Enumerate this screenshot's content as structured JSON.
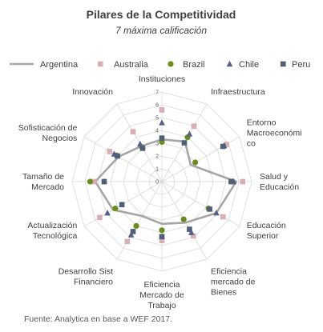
{
  "title": "Pilares de la Competitividad",
  "subtitle": "7 máxima calificación",
  "footer": "Fuente:  Analytica en base a WEF 2017.",
  "chart_data": {
    "type": "radar",
    "title": "Pilares de la Competitividad",
    "subtitle": "7 máxima calificación",
    "rlim": [
      0,
      7
    ],
    "r_ticks": [
      "0",
      "1",
      "2",
      "3",
      "4",
      "5",
      "6",
      "7"
    ],
    "grid": true,
    "legend_position": "top",
    "categories": [
      "Instituciones",
      "Infraestructura",
      "Entorno Macroeconómico",
      "Salud y Educación",
      "Educación Superior",
      "Eficiencia mercado de Bienes",
      "Eficiencia Mercado de Trabajo",
      "Desarrollo Sist Financiero",
      "Actualización Tecnológica",
      "Tamaño de Mercado",
      "Sofisticación de Negocios",
      "Innovación"
    ],
    "category_label_lines": [
      [
        "Instituciones"
      ],
      [
        "Infraestructura"
      ],
      [
        "Entorno",
        "Macroeconómi",
        "co"
      ],
      [
        "Salud y",
        "Educación"
      ],
      [
        "Educación",
        "Superior"
      ],
      [
        "Eficiencia",
        "mercado de",
        "Bienes"
      ],
      [
        "Eficiencia",
        "Mercado de",
        "Trabajo"
      ],
      [
        "Desarrollo Sist",
        "Financiero"
      ],
      [
        "Actualización",
        "Tecnológica"
      ],
      [
        "Tamaño de",
        "Mercado"
      ],
      [
        "Sofisticación de",
        "Negocios"
      ],
      [
        "Innovación"
      ]
    ],
    "series": [
      {
        "name": "Argentina",
        "marker": "line",
        "color": "#a6a6a6",
        "values": [
          3.3,
          3.6,
          2.6,
          5.8,
          4.9,
          3.7,
          3.3,
          3.1,
          4.4,
          5.2,
          3.9,
          3.2
        ]
      },
      {
        "name": "Australia",
        "marker": "square",
        "color": "#d6aeb4",
        "values": [
          5.6,
          5.0,
          5.8,
          6.3,
          5.5,
          4.9,
          4.6,
          5.4,
          5.6,
          5.3,
          4.7,
          4.5
        ]
      },
      {
        "name": "Brazil",
        "marker": "circle",
        "color": "#6a8c1f",
        "values": [
          3.1,
          4.0,
          3.0,
          5.5,
          4.2,
          3.4,
          3.8,
          4.0,
          4.2,
          5.6,
          4.1,
          3.1
        ]
      },
      {
        "name": "Chile",
        "marker": "triangle",
        "color": "#5a5f8a",
        "values": [
          4.6,
          4.3,
          5.6,
          5.6,
          4.9,
          4.6,
          4.3,
          4.8,
          4.9,
          4.5,
          4.3,
          3.4
        ]
      },
      {
        "name": "Peru",
        "marker": "square",
        "color": "#4f6076",
        "values": [
          3.4,
          3.5,
          5.5,
          5.4,
          4.3,
          4.3,
          4.3,
          4.5,
          3.6,
          4.5,
          4.0,
          3.0
        ]
      }
    ]
  }
}
